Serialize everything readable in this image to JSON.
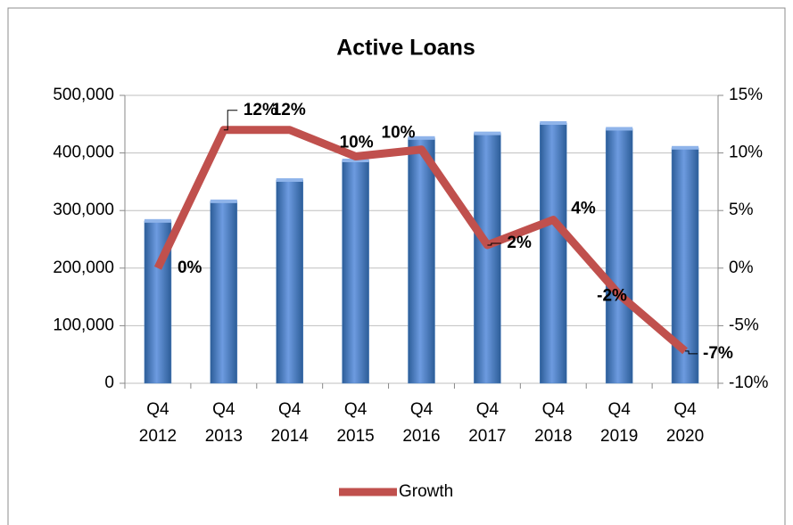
{
  "chart_data": {
    "type": "bar-line",
    "title": "Active Loans",
    "categories": [
      [
        "Q4",
        "2012"
      ],
      [
        "Q4",
        "2013"
      ],
      [
        "Q4",
        "2014"
      ],
      [
        "Q4",
        "2015"
      ],
      [
        "Q4",
        "2016"
      ],
      [
        "Q4",
        "2017"
      ],
      [
        "Q4",
        "2018"
      ],
      [
        "Q4",
        "2019"
      ],
      [
        "Q4",
        "2020"
      ]
    ],
    "series": [
      {
        "type": "bar",
        "color": "#4f81bd",
        "values": [
          282000,
          316000,
          353000,
          387000,
          426000,
          434000,
          452000,
          442000,
          409000
        ]
      },
      {
        "type": "line",
        "name": "Growth",
        "color": "#c0504d",
        "axis": "y2",
        "values": [
          0,
          12,
          12,
          9.7,
          10.3,
          2,
          4.2,
          -2.3,
          -7.2
        ],
        "value_labels": [
          "0%",
          "12%",
          "12%",
          "10%",
          "10%",
          "2%",
          "4%",
          "-2%",
          "-7%"
        ]
      }
    ],
    "ylim": [
      0,
      500000
    ],
    "yticks": [
      0,
      {
        "value": 100000,
        "label": "100,000"
      },
      {
        "value": 200000,
        "label": "200,000"
      },
      {
        "value": 300000,
        "label": "300,000"
      },
      {
        "value": 400000,
        "label": "400,000"
      },
      {
        "value": 500000,
        "label": "500,000"
      }
    ],
    "y2lim": [
      -10,
      15
    ],
    "y2ticks": [
      {
        "value": -10,
        "label": "-10%"
      },
      {
        "value": -5,
        "label": "-5%"
      },
      {
        "value": 0,
        "label": "0%"
      },
      {
        "value": 5,
        "label": "5%"
      },
      {
        "value": 10,
        "label": "10%"
      },
      {
        "value": 15,
        "label": "15%"
      }
    ],
    "grid": true,
    "legend": "bottom"
  }
}
